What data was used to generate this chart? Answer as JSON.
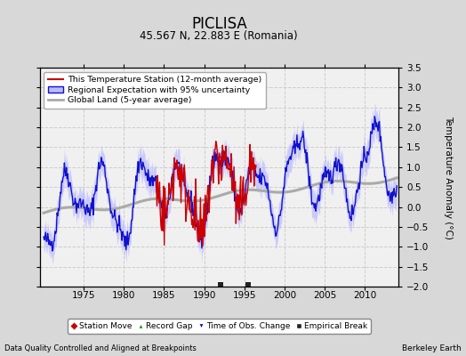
{
  "title": "PICLISA",
  "subtitle": "45.567 N, 22.883 E (Romania)",
  "ylabel": "Temperature Anomaly (°C)",
  "xlabel_left": "Data Quality Controlled and Aligned at Breakpoints",
  "xlabel_right": "Berkeley Earth",
  "ylim": [
    -2.0,
    3.5
  ],
  "yticks": [
    -2,
    -1.5,
    -1,
    -0.5,
    0,
    0.5,
    1,
    1.5,
    2,
    2.5,
    3,
    3.5
  ],
  "xlim": [
    1969.5,
    2014.2
  ],
  "xticks": [
    1975,
    1980,
    1985,
    1990,
    1995,
    2000,
    2005,
    2010
  ],
  "bg_color": "#d8d8d8",
  "plot_bg_color": "#f0f0f0",
  "legend_labels": [
    "This Temperature Station (12-month average)",
    "Regional Expectation with 95% uncertainty",
    "Global Land (5-year average)"
  ],
  "legend_colors": [
    "#cc0000",
    "#2222cc",
    "#aaaaaa"
  ],
  "marker_labels": [
    "Station Move",
    "Record Gap",
    "Time of Obs. Change",
    "Empirical Break"
  ],
  "marker_colors": [
    "#cc0000",
    "#009900",
    "#0000cc",
    "#222222"
  ],
  "marker_shapes": [
    "D",
    "^",
    "v",
    "s"
  ],
  "empirical_break_years": [
    1992.0,
    1995.5
  ]
}
